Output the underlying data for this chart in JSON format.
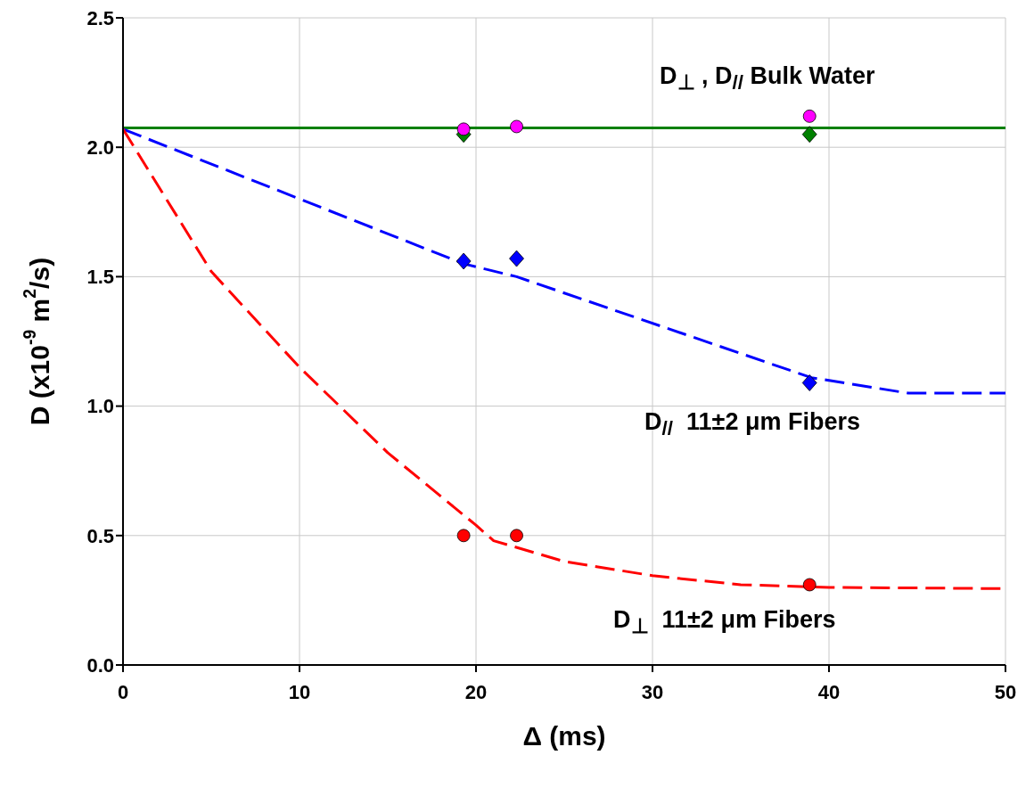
{
  "chart_data": {
    "type": "scatter",
    "xlabel": "Δ (ms)",
    "ylabel": "D (x10$^{-9}$ m$^{2}$/s)",
    "xlim": [
      0,
      50
    ],
    "ylim": [
      0,
      2.5
    ],
    "xticks": [
      0,
      10,
      20,
      30,
      40,
      50
    ],
    "yticks": [
      {
        "value": 0,
        "label": "0.0"
      },
      {
        "value": 0.5,
        "label": "0.5"
      },
      {
        "value": 1,
        "label": "1.0"
      },
      {
        "value": 1.5,
        "label": "1.5"
      },
      {
        "value": 2,
        "label": "2.0"
      },
      {
        "value": 2.5,
        "label": "2.5"
      }
    ],
    "grid": true,
    "series": [
      {
        "type": "line",
        "color": "#008000",
        "line_style": "solid",
        "marker": "none",
        "x": [
          0,
          50
        ],
        "values": [
          2.075,
          2.075
        ]
      },
      {
        "type": "line",
        "color": "#0000ff",
        "line_style": "dashed",
        "marker": "none",
        "x": [
          0,
          19.3,
          22.3,
          39,
          44.5,
          50
        ],
        "values": [
          2.07,
          1.55,
          1.5,
          1.11,
          1.05,
          1.05
        ]
      },
      {
        "type": "line",
        "color": "#ff0000",
        "line_style": "dashed",
        "marker": "none",
        "x": [
          0,
          5,
          10,
          15,
          20,
          21,
          25,
          30,
          35,
          40,
          50
        ],
        "values": [
          2.07,
          1.52,
          1.15,
          0.82,
          0.54,
          0.48,
          0.4,
          0.345,
          0.31,
          0.3,
          0.295
        ]
      },
      {
        "color": "#008000",
        "marker": "diamond",
        "x": [
          19.3,
          22.3,
          38.9
        ],
        "values": [
          2.05,
          null,
          2.05
        ]
      },
      {
        "color": "#ff00ff",
        "marker": "circle",
        "x": [
          19.3,
          22.3,
          38.9
        ],
        "values": [
          2.07,
          2.08,
          2.12
        ]
      },
      {
        "color": "#0000ff",
        "marker": "diamond",
        "x": [
          19.3,
          22.3,
          38.9
        ],
        "values": [
          1.56,
          1.57,
          1.09
        ]
      },
      {
        "color": "#ff0000",
        "marker": "circle",
        "x": [
          19.3,
          22.3,
          38.9
        ],
        "values": [
          0.5,
          0.5,
          0.31
        ]
      }
    ],
    "annotations": [
      "D$_{⊥}$ , D$_{//}$ Bulk Water",
      "D$_{//}$  11±2 μm Fibers",
      "D$_{⊥}$  11±2 μm Fibers"
    ]
  }
}
